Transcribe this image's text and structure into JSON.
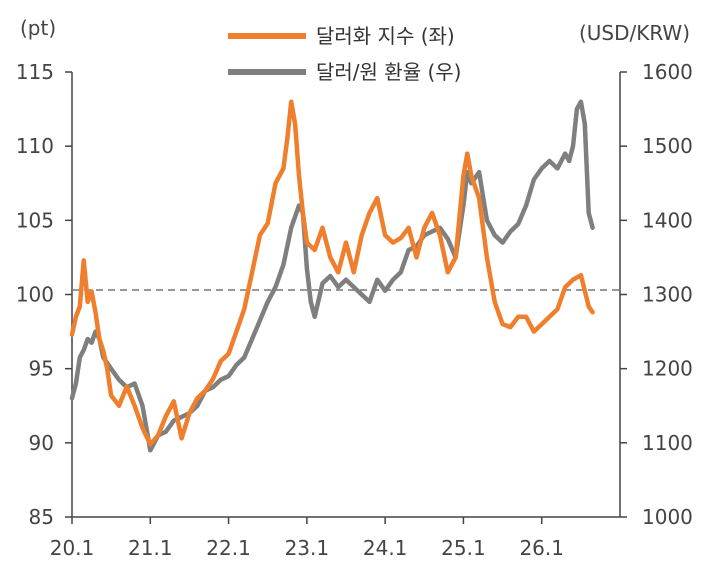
{
  "chart_data": {
    "type": "line",
    "left_unit": "(pt)",
    "right_unit": "(USD/KRW)",
    "left_axis": {
      "min": 85,
      "max": 115,
      "ticks": [
        85,
        90,
        95,
        100,
        105,
        110,
        115
      ]
    },
    "right_axis": {
      "min": 1000,
      "max": 1600,
      "ticks": [
        1000,
        1100,
        1200,
        1300,
        1400,
        1500,
        1600
      ]
    },
    "x_axis": {
      "min": 2020.0,
      "max": 2027.0,
      "ticks": [
        "20.1",
        "21.1",
        "22.1",
        "23.1",
        "24.1",
        "25.1",
        "26.1"
      ]
    },
    "reference_line": {
      "axis": "left",
      "value": 100.3
    },
    "legend_position": "top-center",
    "grid": false,
    "series": [
      {
        "name": "달러화 지수 (좌)",
        "axis": "left",
        "color": "#f07f2d",
        "x": [
          2020.0,
          2020.05,
          2020.1,
          2020.15,
          2020.2,
          2020.25,
          2020.3,
          2020.35,
          2020.4,
          2020.45,
          2020.5,
          2020.6,
          2020.7,
          2020.8,
          2020.9,
          2021.0,
          2021.1,
          2021.2,
          2021.3,
          2021.4,
          2021.5,
          2021.6,
          2021.7,
          2021.8,
          2021.9,
          2022.0,
          2022.1,
          2022.2,
          2022.3,
          2022.4,
          2022.5,
          2022.6,
          2022.7,
          2022.75,
          2022.8,
          2022.85,
          2022.9,
          2022.95,
          2023.0,
          2023.1,
          2023.2,
          2023.3,
          2023.4,
          2023.5,
          2023.6,
          2023.7,
          2023.8,
          2023.9,
          2024.0,
          2024.1,
          2024.2,
          2024.3,
          2024.4,
          2024.5,
          2024.6,
          2024.7,
          2024.8,
          2024.9,
          2025.0,
          2025.05,
          2025.1,
          2025.2,
          2025.3,
          2025.4,
          2025.5,
          2025.6,
          2025.7,
          2025.8,
          2025.9,
          2026.0,
          2026.1,
          2026.2,
          2026.3,
          2026.4,
          2026.5,
          2026.6,
          2026.65
        ],
        "values": [
          97.3,
          98.5,
          99.2,
          102.3,
          99.5,
          100.2,
          98.8,
          97.0,
          96.2,
          95.0,
          93.2,
          92.5,
          93.8,
          92.5,
          91.0,
          89.9,
          90.5,
          91.8,
          92.8,
          90.3,
          92.0,
          93.0,
          93.5,
          94.3,
          95.5,
          96.0,
          97.5,
          99.0,
          101.5,
          104.0,
          104.8,
          107.5,
          108.5,
          110.5,
          113.0,
          111.5,
          108.0,
          105.5,
          103.5,
          103.0,
          104.5,
          102.5,
          101.5,
          103.5,
          101.5,
          104.0,
          105.5,
          106.5,
          104.0,
          103.5,
          103.8,
          104.5,
          102.5,
          104.5,
          105.5,
          104.0,
          101.5,
          102.5,
          108.0,
          109.5,
          108.0,
          106.5,
          102.5,
          99.5,
          98.0,
          97.8,
          98.5,
          98.5,
          97.5,
          98.0,
          98.5,
          99.0,
          100.5,
          101.0,
          101.3,
          99.2,
          98.8
        ]
      },
      {
        "name": "달러/원 환율 (우)",
        "axis": "right",
        "color": "#7f7f7f",
        "x": [
          2020.0,
          2020.05,
          2020.1,
          2020.15,
          2020.2,
          2020.25,
          2020.3,
          2020.35,
          2020.4,
          2020.5,
          2020.6,
          2020.7,
          2020.8,
          2020.9,
          2021.0,
          2021.1,
          2021.2,
          2021.3,
          2021.4,
          2021.5,
          2021.6,
          2021.7,
          2021.8,
          2021.9,
          2022.0,
          2022.1,
          2022.2,
          2022.3,
          2022.4,
          2022.5,
          2022.6,
          2022.7,
          2022.8,
          2022.85,
          2022.9,
          2022.95,
          2023.0,
          2023.05,
          2023.1,
          2023.2,
          2023.3,
          2023.4,
          2023.5,
          2023.6,
          2023.7,
          2023.8,
          2023.9,
          2024.0,
          2024.1,
          2024.2,
          2024.3,
          2024.4,
          2024.5,
          2024.6,
          2024.7,
          2024.8,
          2024.9,
          2025.0,
          2025.05,
          2025.1,
          2025.2,
          2025.3,
          2025.4,
          2025.5,
          2025.6,
          2025.7,
          2025.8,
          2025.9,
          2026.0,
          2026.1,
          2026.2,
          2026.3,
          2026.35,
          2026.4,
          2026.45,
          2026.5,
          2026.55,
          2026.6,
          2026.65
        ],
        "values": [
          1160,
          1180,
          1215,
          1225,
          1240,
          1235,
          1250,
          1240,
          1215,
          1200,
          1185,
          1175,
          1180,
          1150,
          1090,
          1110,
          1115,
          1130,
          1135,
          1140,
          1150,
          1170,
          1175,
          1185,
          1190,
          1205,
          1215,
          1240,
          1265,
          1290,
          1310,
          1340,
          1390,
          1405,
          1420,
          1410,
          1335,
          1290,
          1270,
          1315,
          1325,
          1310,
          1320,
          1310,
          1300,
          1290,
          1320,
          1305,
          1320,
          1330,
          1360,
          1365,
          1380,
          1385,
          1390,
          1375,
          1350,
          1420,
          1465,
          1450,
          1465,
          1400,
          1380,
          1370,
          1385,
          1395,
          1420,
          1455,
          1470,
          1480,
          1470,
          1490,
          1480,
          1500,
          1550,
          1560,
          1530,
          1410,
          1390
        ]
      }
    ]
  }
}
